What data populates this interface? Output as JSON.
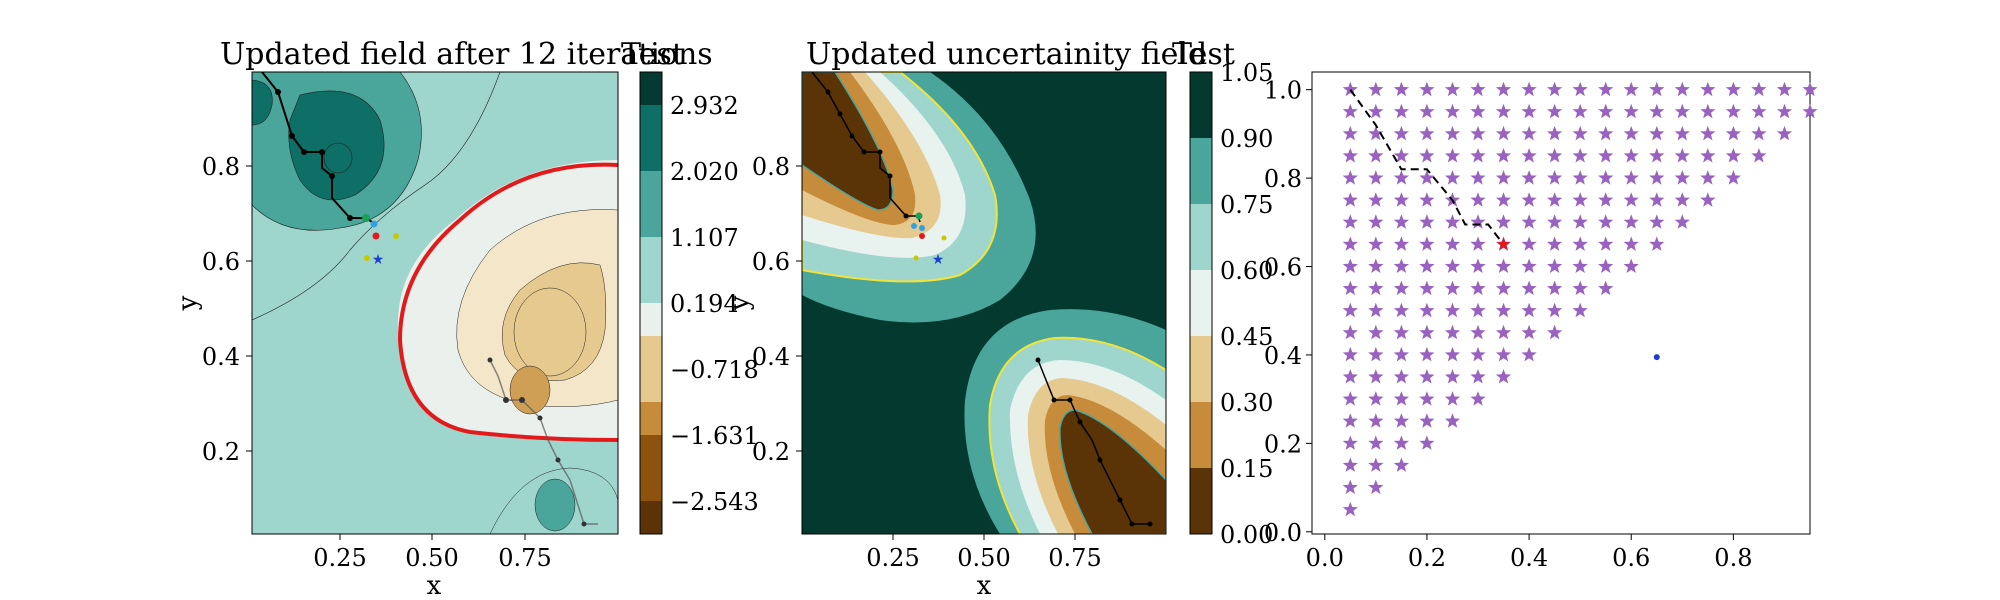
{
  "chart_data": [
    {
      "type": "contour",
      "title": "Updated field after 12 iterations",
      "colorbar_label": "Test",
      "xlabel": "x",
      "ylabel": "y",
      "xticks": [
        "0.25",
        "0.50",
        "0.75"
      ],
      "yticks": [
        "0.2",
        "0.4",
        "0.6",
        "0.8"
      ],
      "colorbar_ticks": [
        "2.932",
        "2.020",
        "1.107",
        "0.194",
        "−0.718",
        "−1.631",
        "−2.543"
      ],
      "colormap": "BrBG",
      "zero_contour_color": "#e31a1c",
      "annotations": [
        {
          "label": "current point",
          "x": 0.35,
          "y": 0.65,
          "color": "#e31a1c"
        },
        {
          "label": "target",
          "x": 0.38,
          "y": 0.61,
          "color": "#1f3fd1",
          "marker": "star"
        }
      ],
      "path_upper": [
        [
          0.04,
          1.0
        ],
        [
          0.07,
          0.96
        ],
        [
          0.1,
          0.92
        ],
        [
          0.13,
          0.88
        ],
        [
          0.16,
          0.84
        ],
        [
          0.16,
          0.82
        ],
        [
          0.19,
          0.82
        ],
        [
          0.22,
          0.82
        ],
        [
          0.22,
          0.78
        ],
        [
          0.25,
          0.75
        ],
        [
          0.25,
          0.72
        ],
        [
          0.28,
          0.69
        ],
        [
          0.31,
          0.69
        ],
        [
          0.34,
          0.69
        ],
        [
          0.35,
          0.65
        ]
      ],
      "path_lower": [
        [
          0.65,
          0.4
        ],
        [
          0.67,
          0.37
        ],
        [
          0.69,
          0.33
        ],
        [
          0.7,
          0.3
        ],
        [
          0.74,
          0.3
        ],
        [
          0.78,
          0.26
        ],
        [
          0.8,
          0.22
        ],
        [
          0.82,
          0.19
        ],
        [
          0.84,
          0.15
        ],
        [
          0.86,
          0.12
        ],
        [
          0.88,
          0.08
        ],
        [
          0.9,
          0.04
        ],
        [
          0.93,
          0.04
        ]
      ]
    },
    {
      "type": "contour",
      "title": "Updated uncertainity field",
      "colorbar_label": "Test",
      "xlabel": "x",
      "ylabel": "y",
      "xticks": [
        "0.25",
        "0.50",
        "0.75"
      ],
      "yticks": [
        "0.2",
        "0.4",
        "0.6",
        "0.8"
      ],
      "colorbar_ticks": [
        "1.05",
        "0.90",
        "0.75",
        "0.60",
        "0.45",
        "0.30",
        "0.15",
        "0.00"
      ],
      "levels": [
        0.0,
        0.15,
        0.3,
        0.45,
        0.6,
        0.75,
        0.9,
        1.05
      ],
      "level_contour_color": "#f2e33a",
      "annotations": [
        {
          "label": "current point",
          "x": 0.35,
          "y": 0.65,
          "color": "#e31a1c"
        },
        {
          "label": "target",
          "x": 0.38,
          "y": 0.61,
          "color": "#1f3fd1",
          "marker": "star"
        }
      ]
    },
    {
      "type": "scatter",
      "xticks": [
        "0.0",
        "0.2",
        "0.4",
        "0.6",
        "0.8"
      ],
      "yticks": [
        "0.0",
        "0.2",
        "0.4",
        "0.6",
        "0.8",
        "1.0"
      ],
      "xlim": [
        -0.025,
        0.95
      ],
      "ylim": [
        -0.005,
        1.04
      ],
      "candidate_grid": {
        "marker": "star",
        "color": "#9a62c0",
        "x_start": 0.05,
        "y_top": 1.0,
        "step": 0.05,
        "rows": 20,
        "pattern": "triangle"
      },
      "highlight": {
        "x": 0.35,
        "y": 0.65,
        "color": "#e31a1c",
        "marker": "star"
      },
      "other_point": {
        "x": 0.65,
        "y": 0.395,
        "color": "#1f3fd1"
      },
      "path": [
        [
          0.05,
          1.0
        ],
        [
          0.1,
          0.92
        ],
        [
          0.15,
          0.82
        ],
        [
          0.2,
          0.82
        ],
        [
          0.25,
          0.75
        ],
        [
          0.275,
          0.695
        ],
        [
          0.32,
          0.695
        ],
        [
          0.35,
          0.65
        ]
      ]
    }
  ]
}
